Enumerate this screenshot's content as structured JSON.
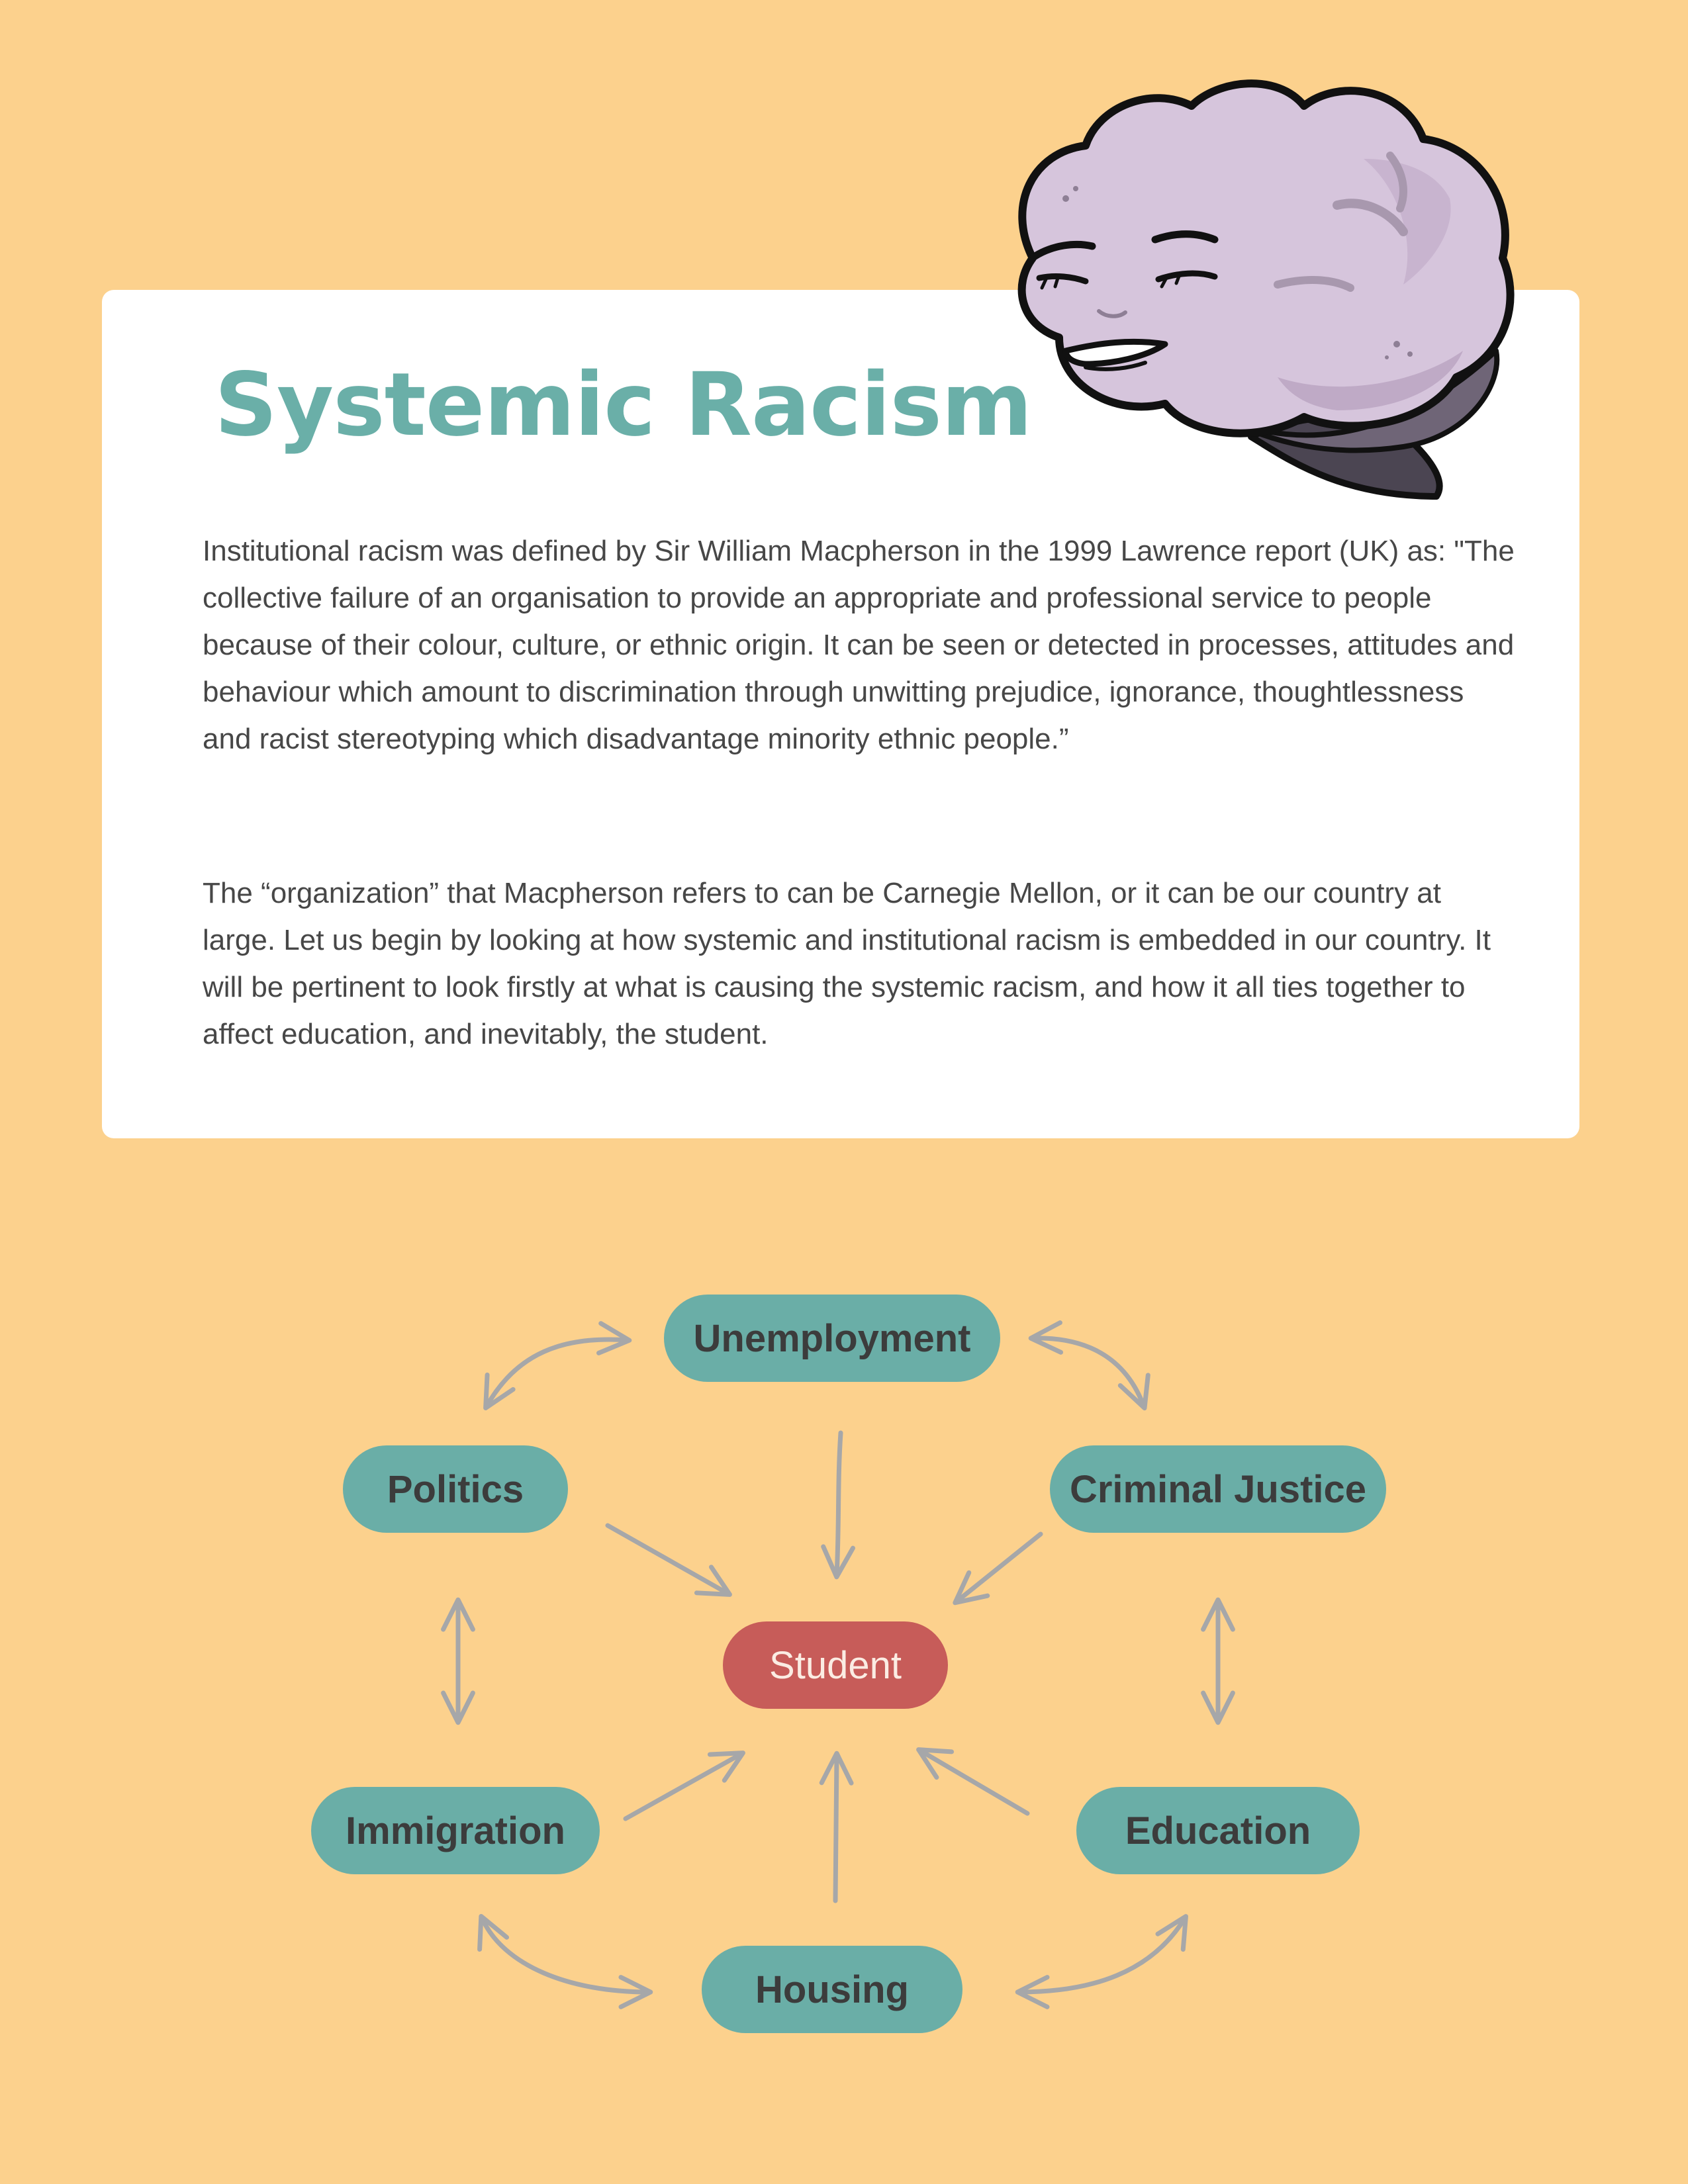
{
  "title": "Systemic Racism",
  "paragraphs": [
    "Institutional racism was defined by Sir William Macpherson in the 1999 Lawrence report (UK) as: \"The collective failure of an organisation to provide an appropriate and professional service to people because of their colour, culture, or ethnic origin. It can be seen or detected in processes, attitudes and behaviour which amount to discrimination through unwitting prejudice, ignorance, thoughtlessness and racist stereotyping which disadvantage minority ethnic people.”",
    "The “organization” that Macpherson refers to can be Carnegie Mellon, or it can be our country at large. Let us begin by looking at how systemic and institutional racism is embedded in our country. It will be pertinent to look firstly at what is causing the systemic racism, and how it all ties together to affect education, and inevitably, the student."
  ],
  "illustration": {
    "icon": "brain-character-icon",
    "colors": {
      "body": "#D6C5DC",
      "outline": "#111111",
      "stem": "#4B4552"
    }
  },
  "diagram": {
    "center": {
      "id": "student",
      "label": "Student"
    },
    "nodes": [
      {
        "id": "unemployment",
        "label": "Unemployment"
      },
      {
        "id": "politics",
        "label": "Politics"
      },
      {
        "id": "criminal-justice",
        "label": "Criminal Justice"
      },
      {
        "id": "immigration",
        "label": "Immigration"
      },
      {
        "id": "education",
        "label": "Education"
      },
      {
        "id": "housing",
        "label": "Housing"
      }
    ],
    "edges": [
      {
        "from": "unemployment",
        "to": "student",
        "type": "directed"
      },
      {
        "from": "politics",
        "to": "student",
        "type": "directed"
      },
      {
        "from": "criminal-justice",
        "to": "student",
        "type": "directed"
      },
      {
        "from": "immigration",
        "to": "student",
        "type": "directed"
      },
      {
        "from": "education",
        "to": "student",
        "type": "directed"
      },
      {
        "from": "housing",
        "to": "student",
        "type": "directed"
      },
      {
        "from": "politics",
        "to": "unemployment",
        "type": "bidirectional"
      },
      {
        "from": "unemployment",
        "to": "criminal-justice",
        "type": "bidirectional"
      },
      {
        "from": "politics",
        "to": "immigration",
        "type": "bidirectional"
      },
      {
        "from": "criminal-justice",
        "to": "education",
        "type": "bidirectional"
      },
      {
        "from": "immigration",
        "to": "housing",
        "type": "bidirectional"
      },
      {
        "from": "housing",
        "to": "education",
        "type": "bidirectional"
      }
    ],
    "colors": {
      "node": "#6AAEA7",
      "center": "#C75C59",
      "arrow": "#A6A7A9"
    }
  }
}
